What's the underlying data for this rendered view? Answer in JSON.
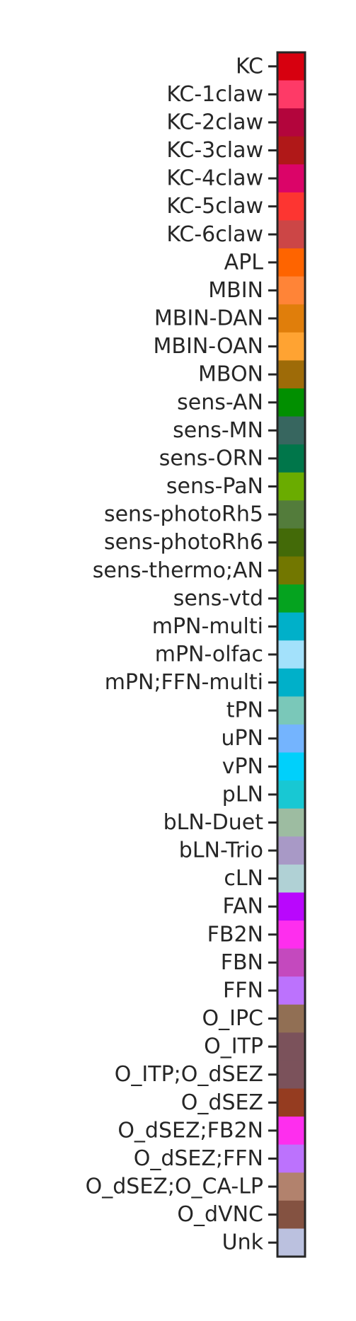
{
  "chart_data": {
    "type": "heatmap",
    "title": "",
    "xlabel": "",
    "ylabel": "",
    "categories": [
      "KC",
      "KC-1claw",
      "KC-2claw",
      "KC-3claw",
      "KC-4claw",
      "KC-5claw",
      "KC-6claw",
      "APL",
      "MBIN",
      "MBIN-DAN",
      "MBIN-OAN",
      "MBON",
      "sens-AN",
      "sens-MN",
      "sens-ORN",
      "sens-PaN",
      "sens-photoRh5",
      "sens-photoRh6",
      "sens-thermo;AN",
      "sens-vtd",
      "mPN-multi",
      "mPN-olfac",
      "mPN;FFN-multi",
      "tPN",
      "uPN",
      "vPN",
      "pLN",
      "bLN-Duet",
      "bLN-Trio",
      "cLN",
      "FAN",
      "FB2N",
      "FBN",
      "FFN",
      "O_IPC",
      "O_ITP",
      "O_ITP;O_dSEZ",
      "O_dSEZ",
      "O_dSEZ;FB2N",
      "O_dSEZ;FFN",
      "O_dSEZ;O_CA-LP",
      "O_dVNC",
      "Unk"
    ],
    "colors": [
      "#d7000f",
      "#fe3a67",
      "#b3053c",
      "#b01818",
      "#db0468",
      "#fd3531",
      "#cc4646",
      "#fe6400",
      "#ff8437",
      "#e07e0b",
      "#ffa332",
      "#9e6b08",
      "#018f00",
      "#37665f",
      "#00764a",
      "#6aac00",
      "#537c3b",
      "#436a08",
      "#727700",
      "#05a31f",
      "#00b0c9",
      "#a3e1fb",
      "#00b0c9",
      "#7ac8b9",
      "#74b4fe",
      "#00d0fb",
      "#18c8d3",
      "#9dbca1",
      "#a899c6",
      "#b0d1d5",
      "#b907fd",
      "#fe2eee",
      "#c449be",
      "#bc72fd",
      "#916f54",
      "#7b525b",
      "#7b525b",
      "#953c20",
      "#fe2eee",
      "#bc72fd",
      "#b2826d",
      "#845241",
      "#bbc1df"
    ],
    "grid": false,
    "legend": "none",
    "axis_position": "left"
  }
}
